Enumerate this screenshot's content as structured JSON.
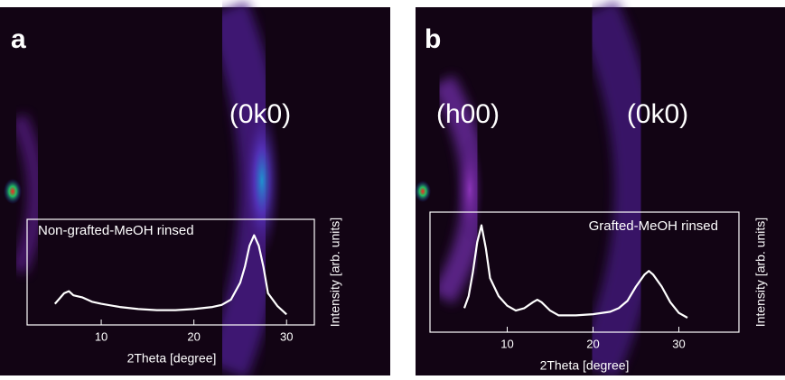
{
  "chart_data": [
    {
      "type": "line",
      "panel_label": "a",
      "annotations": [
        "(0k0)"
      ],
      "x_label": "2Theta [degree]",
      "y_label": "Intensity [arb. units]",
      "x": [
        5,
        6,
        6.5,
        7,
        8,
        9,
        10,
        12,
        14,
        16,
        18,
        20,
        22,
        23,
        24,
        25,
        25.5,
        26,
        26.5,
        27,
        27.5,
        28,
        29,
        30
      ],
      "series": [
        {
          "name": "Non-grafted-MeOH rinsed",
          "color": "#ffffff",
          "values": [
            20,
            30,
            32,
            28,
            26,
            22,
            20,
            17,
            15,
            14,
            14,
            15,
            17,
            19,
            24,
            40,
            55,
            75,
            85,
            75,
            55,
            30,
            18,
            10
          ]
        }
      ],
      "xlim": [
        2,
        33
      ],
      "xticks": [
        10,
        20,
        30
      ],
      "ylim": [
        0,
        100
      ]
    },
    {
      "type": "line",
      "panel_label": "b",
      "annotations": [
        "(h00)",
        "(0k0)"
      ],
      "x_label": "2Theta [degree]",
      "y_label": "Intensity [arb. units]",
      "x": [
        5,
        5.5,
        6,
        6.5,
        7,
        7.5,
        8,
        9,
        10,
        11,
        12,
        13,
        13.5,
        14,
        15,
        16,
        18,
        20,
        22,
        23,
        24,
        25,
        26,
        26.5,
        27,
        28,
        29,
        30,
        31
      ],
      "series": [
        {
          "name": "Grafted-MeOH rinsed",
          "color": "#ffffff",
          "values": [
            20,
            30,
            50,
            75,
            89,
            70,
            45,
            30,
            22,
            18,
            20,
            25,
            27,
            25,
            18,
            14,
            14,
            15,
            17,
            20,
            26,
            38,
            48,
            51,
            48,
            38,
            25,
            16,
            12
          ]
        }
      ],
      "xlim": [
        1,
        37
      ],
      "xticks": [
        10,
        20,
        30
      ],
      "ylim": [
        0,
        100
      ]
    }
  ]
}
